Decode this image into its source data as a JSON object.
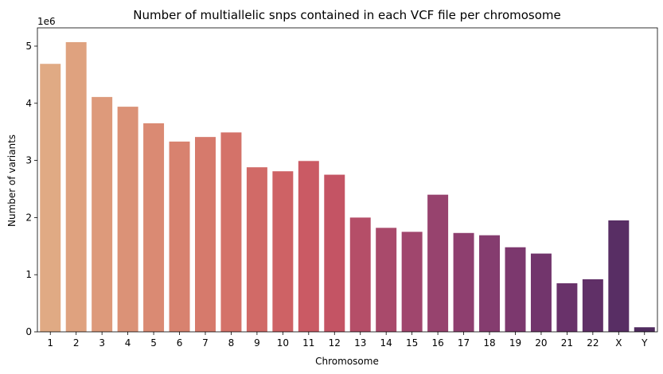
{
  "chart_data": {
    "type": "bar",
    "title": "Number of multiallelic snps contained in each VCF file per chromosome",
    "xlabel": "Chromosome",
    "ylabel": "Number of variants",
    "y_offset_text": "1e6",
    "categories": [
      "1",
      "2",
      "3",
      "4",
      "5",
      "6",
      "7",
      "8",
      "9",
      "10",
      "11",
      "12",
      "13",
      "14",
      "15",
      "16",
      "17",
      "18",
      "19",
      "20",
      "21",
      "22",
      "X",
      "Y"
    ],
    "values": [
      4690000,
      5070000,
      4110000,
      3940000,
      3650000,
      3330000,
      3410000,
      3490000,
      2880000,
      2810000,
      2990000,
      2750000,
      2000000,
      1820000,
      1750000,
      2400000,
      1730000,
      1690000,
      1480000,
      1370000,
      850000,
      920000,
      1950000,
      80000
    ],
    "ylim": [
      0,
      5320000
    ],
    "yticks": [
      0,
      1000000,
      2000000,
      3000000,
      4000000,
      5000000
    ],
    "ytick_labels": [
      "0",
      "1",
      "2",
      "3",
      "4",
      "5"
    ],
    "colors": [
      "#e0aa84",
      "#dfa27f",
      "#dd9a7b",
      "#db9277",
      "#da8a73",
      "#d8826f",
      "#d67a6c",
      "#d47269",
      "#d16a67",
      "#ce6265",
      "#ca5a64",
      "#c45464",
      "#b54e68",
      "#a94a6b",
      "#a0466d",
      "#97436e",
      "#8e3f6f",
      "#853c6f",
      "#7c386e",
      "#72356c",
      "#69326a",
      "#603067",
      "#582e64",
      "#502c5f"
    ],
    "grid": false,
    "legend": "none"
  }
}
